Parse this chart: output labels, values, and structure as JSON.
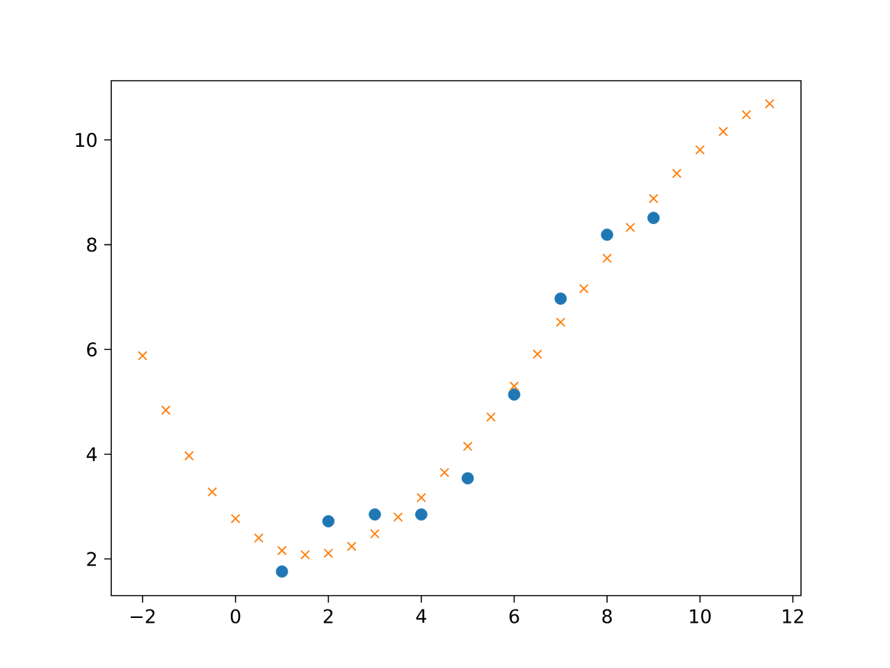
{
  "chart_data": {
    "type": "scatter",
    "xlim": [
      -2.675,
      12.175
    ],
    "ylim": [
      1.3,
      11.13
    ],
    "xticks": [
      {
        "value": -2,
        "label": "−2"
      },
      0,
      2,
      4,
      6,
      8,
      10,
      12
    ],
    "yticks": [
      2,
      4,
      6,
      8,
      10
    ],
    "series": [
      {
        "color": "#1f77b4",
        "marker": "circle",
        "x": [
          1,
          2,
          3,
          4,
          5,
          6,
          7,
          8,
          9
        ],
        "values": [
          1.76,
          2.72,
          2.85,
          2.85,
          3.54,
          5.14,
          6.97,
          8.19,
          8.51
        ]
      },
      {
        "color": "#ff7f0e",
        "marker": "cross",
        "x": [
          -2,
          -1.5,
          -1,
          -0.5,
          0,
          0.5,
          1,
          1.5,
          2,
          2.5,
          3,
          3.5,
          4,
          4.5,
          5,
          5.5,
          6,
          6.5,
          7,
          7.5,
          8,
          8.5,
          9,
          9.5,
          10,
          10.5,
          11,
          11.5
        ],
        "values": [
          5.88,
          4.84,
          3.97,
          3.28,
          2.77,
          2.4,
          2.16,
          2.08,
          2.11,
          2.24,
          2.48,
          2.8,
          3.17,
          3.65,
          4.15,
          4.71,
          5.3,
          5.91,
          6.52,
          7.16,
          7.74,
          8.33,
          8.88,
          9.36,
          9.81,
          10.16,
          10.48,
          10.69
        ]
      }
    ]
  }
}
